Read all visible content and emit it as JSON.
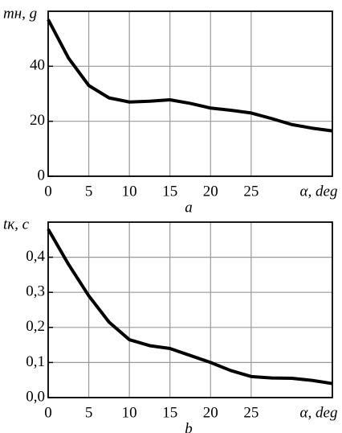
{
  "chart_data": [
    {
      "type": "line",
      "ylabel": "mн, g",
      "xlabel": "α, deg",
      "caption": "a",
      "x": [
        0,
        2.5,
        5,
        7.5,
        10,
        12.5,
        15,
        17.5,
        20,
        22.5,
        25,
        27.5,
        30,
        32.5,
        35
      ],
      "series": [
        {
          "name": "mн",
          "color": "#000000",
          "values": [
            57,
            43,
            33,
            28.5,
            27,
            27.3,
            27.8,
            26.5,
            24.8,
            24,
            23,
            21,
            18.8,
            17.5,
            16.5
          ]
        }
      ],
      "xlim": [
        0,
        35
      ],
      "xticks": [
        0,
        5,
        10,
        15,
        20,
        25
      ],
      "ylim": [
        0,
        60
      ],
      "yticks": [
        0,
        20,
        40
      ],
      "grid": true
    },
    {
      "type": "line",
      "ylabel": "tк, c",
      "xlabel": "α, deg",
      "caption": "b",
      "x": [
        0,
        2.5,
        5,
        7.5,
        10,
        12.5,
        15,
        17.5,
        20,
        22.5,
        25,
        27.5,
        30,
        32.5,
        35
      ],
      "series": [
        {
          "name": "tк",
          "color": "#000000",
          "values": [
            0.48,
            0.38,
            0.29,
            0.215,
            0.165,
            0.148,
            0.14,
            0.12,
            0.1,
            0.077,
            0.06,
            0.056,
            0.055,
            0.049,
            0.04
          ]
        }
      ],
      "xlim": [
        0,
        35
      ],
      "xticks": [
        0,
        5,
        10,
        15,
        20,
        25
      ],
      "ylim": [
        0,
        0.5
      ],
      "yticks": [
        {
          "value": 0,
          "label": "0,0"
        },
        {
          "value": 0.1,
          "label": "0,1"
        },
        {
          "value": 0.2,
          "label": "0,2"
        },
        {
          "value": 0.3,
          "label": "0,3"
        },
        {
          "value": 0.4,
          "label": "0,4"
        }
      ],
      "grid": true
    }
  ]
}
